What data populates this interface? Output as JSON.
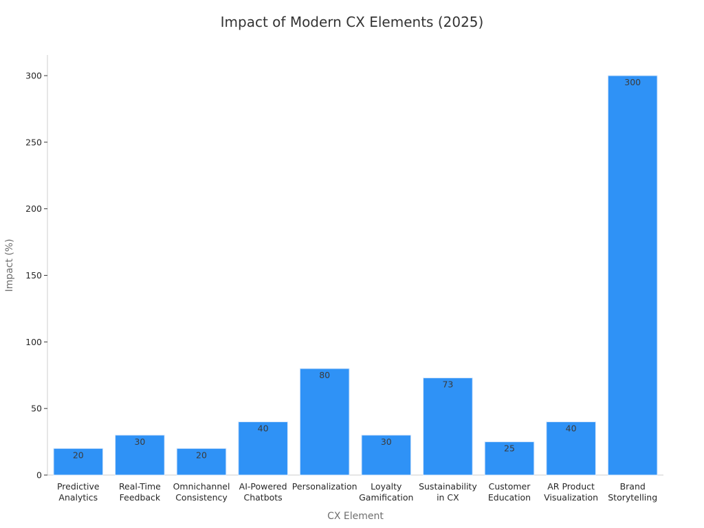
{
  "chart_data": {
    "type": "bar",
    "title": "Impact of Modern CX Elements (2025)",
    "xlabel": "CX Element",
    "ylabel": "Impact (%)",
    "categories": [
      [
        "Predictive",
        "Analytics"
      ],
      [
        "Real-Time",
        "Feedback"
      ],
      [
        "Omnichannel",
        "Consistency"
      ],
      [
        "AI-Powered",
        "Chatbots"
      ],
      [
        "Personalization"
      ],
      [
        "Loyalty",
        "Gamification"
      ],
      [
        "Sustainability",
        "in CX"
      ],
      [
        "Customer",
        "Education"
      ],
      [
        "AR Product",
        "Visualization"
      ],
      [
        "Brand",
        "Storytelling"
      ]
    ],
    "values": [
      20,
      30,
      20,
      40,
      80,
      30,
      73,
      25,
      40,
      300
    ],
    "ylim": [
      0,
      300
    ],
    "yticks": [
      0,
      50,
      100,
      150,
      200,
      250,
      300
    ],
    "grid": false,
    "bar_color": "#2f92f6",
    "axis_color": "#cccccc"
  }
}
